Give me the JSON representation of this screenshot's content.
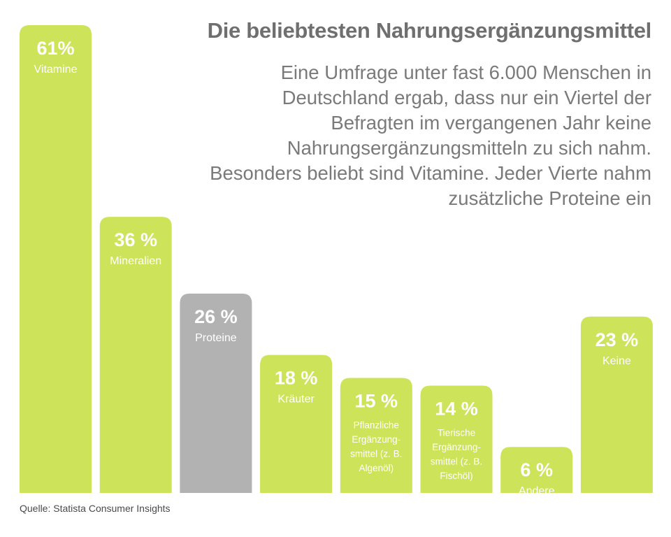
{
  "chart_data": {
    "type": "bar",
    "title": "Die beliebtesten Nahrungsergänzungsmittel",
    "subtitle": "Eine Umfrage unter fast 6.000 Menschen in Deutschland ergab, dass nur ein Viertel der Befragten im vergangenen Jahr keine Nahrungsergänzungsmitteln zu sich nahm. Besonders beliebt sind Vitamine. Jeder Vierte nahm zusätzliche Proteine ein",
    "categories": [
      "Vitamine",
      "Mineralien",
      "Proteine",
      "Kräuter",
      "Pflanzliche Ergänzungsmittel (z. B. Algenöl)",
      "Tierische Ergänzungsmittel (z. B. Fischöl)",
      "Andere",
      "Keine"
    ],
    "category_label_lines": [
      [
        "Vitamine"
      ],
      [
        "Mineralien"
      ],
      [
        "Proteine"
      ],
      [
        "Kräuter"
      ],
      [
        "Pflanzliche",
        "Ergänzung-",
        "smittel (z. B.",
        "Algenöl)"
      ],
      [
        "Tierische",
        "Ergänzung-",
        "smittel (z. B.",
        "Fischöl)"
      ],
      [
        "Andere"
      ],
      [
        "Keine"
      ]
    ],
    "values": [
      61,
      36,
      26,
      18,
      15,
      14,
      6,
      23
    ],
    "value_labels": [
      "61%",
      "36 %",
      "26 %",
      "18 %",
      "15 %",
      "14 %",
      "6 %",
      "23 %"
    ],
    "highlighted": [
      false,
      false,
      true,
      false,
      false,
      false,
      false,
      false
    ],
    "unit": "%",
    "ylim": [
      0,
      61
    ],
    "grid": false,
    "xlabel": "",
    "ylabel": ""
  },
  "source": "Quelle: Statista Consumer Insights",
  "colors": {
    "bar": "#cde35a",
    "bar_highlight": "#b2b2b2",
    "label": "#ffffff",
    "headline": "#6f6f6f",
    "subline": "#7a7a7a",
    "source": "#4a4a4a"
  }
}
